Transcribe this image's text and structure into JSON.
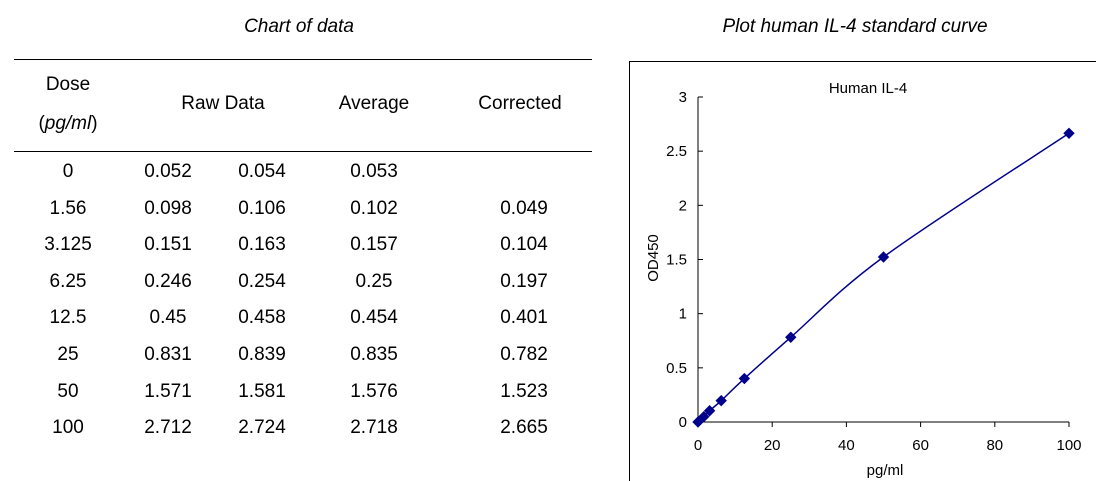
{
  "table": {
    "title": "Chart of data",
    "headers": {
      "dose_line1": "Dose",
      "dose_open": "(",
      "dose_unit": "pg/ml",
      "dose_close": ")",
      "raw": "Raw Data",
      "average": "Average",
      "corrected": "Corrected"
    },
    "rows": [
      {
        "dose": "0",
        "raw1": "0.052",
        "raw2": "0.054",
        "average": "0.053",
        "corrected": ""
      },
      {
        "dose": "1.56",
        "raw1": "0.098",
        "raw2": "0.106",
        "average": "0.102",
        "corrected": "0.049"
      },
      {
        "dose": "3.125",
        "raw1": "0.151",
        "raw2": "0.163",
        "average": "0.157",
        "corrected": "0.104"
      },
      {
        "dose": "6.25",
        "raw1": "0.246",
        "raw2": "0.254",
        "average": "0.25",
        "corrected": "0.197"
      },
      {
        "dose": "12.5",
        "raw1": "0.45",
        "raw2": "0.458",
        "average": "0.454",
        "corrected": "0.401"
      },
      {
        "dose": "25",
        "raw1": "0.831",
        "raw2": "0.839",
        "average": "0.835",
        "corrected": "0.782"
      },
      {
        "dose": "50",
        "raw1": "1.571",
        "raw2": "1.581",
        "average": "1.576",
        "corrected": "1.523"
      },
      {
        "dose": "100",
        "raw1": "2.712",
        "raw2": "2.724",
        "average": "2.718",
        "corrected": "2.665"
      }
    ]
  },
  "chart_data": {
    "type": "line",
    "heading": "Plot human IL-4 standard curve",
    "title": "Human IL-4",
    "xlabel": "pg/ml",
    "ylabel": "OD450",
    "xlim": [
      0,
      100
    ],
    "ylim": [
      0,
      3
    ],
    "xticks": [
      0,
      20,
      40,
      60,
      80,
      100
    ],
    "yticks": [
      0,
      0.5,
      1,
      1.5,
      2,
      2.5,
      3
    ],
    "yticklabels": [
      "0",
      "0.5",
      "1",
      "1.5",
      "2",
      "2.5",
      "3"
    ],
    "grid": false,
    "series": [
      {
        "color": "#00008B",
        "marker": "diamond",
        "x": [
          0,
          1.56,
          3.125,
          6.25,
          12.5,
          25,
          50,
          100
        ],
        "y": [
          0,
          0.049,
          0.104,
          0.197,
          0.401,
          0.782,
          1.523,
          2.665
        ]
      }
    ]
  }
}
